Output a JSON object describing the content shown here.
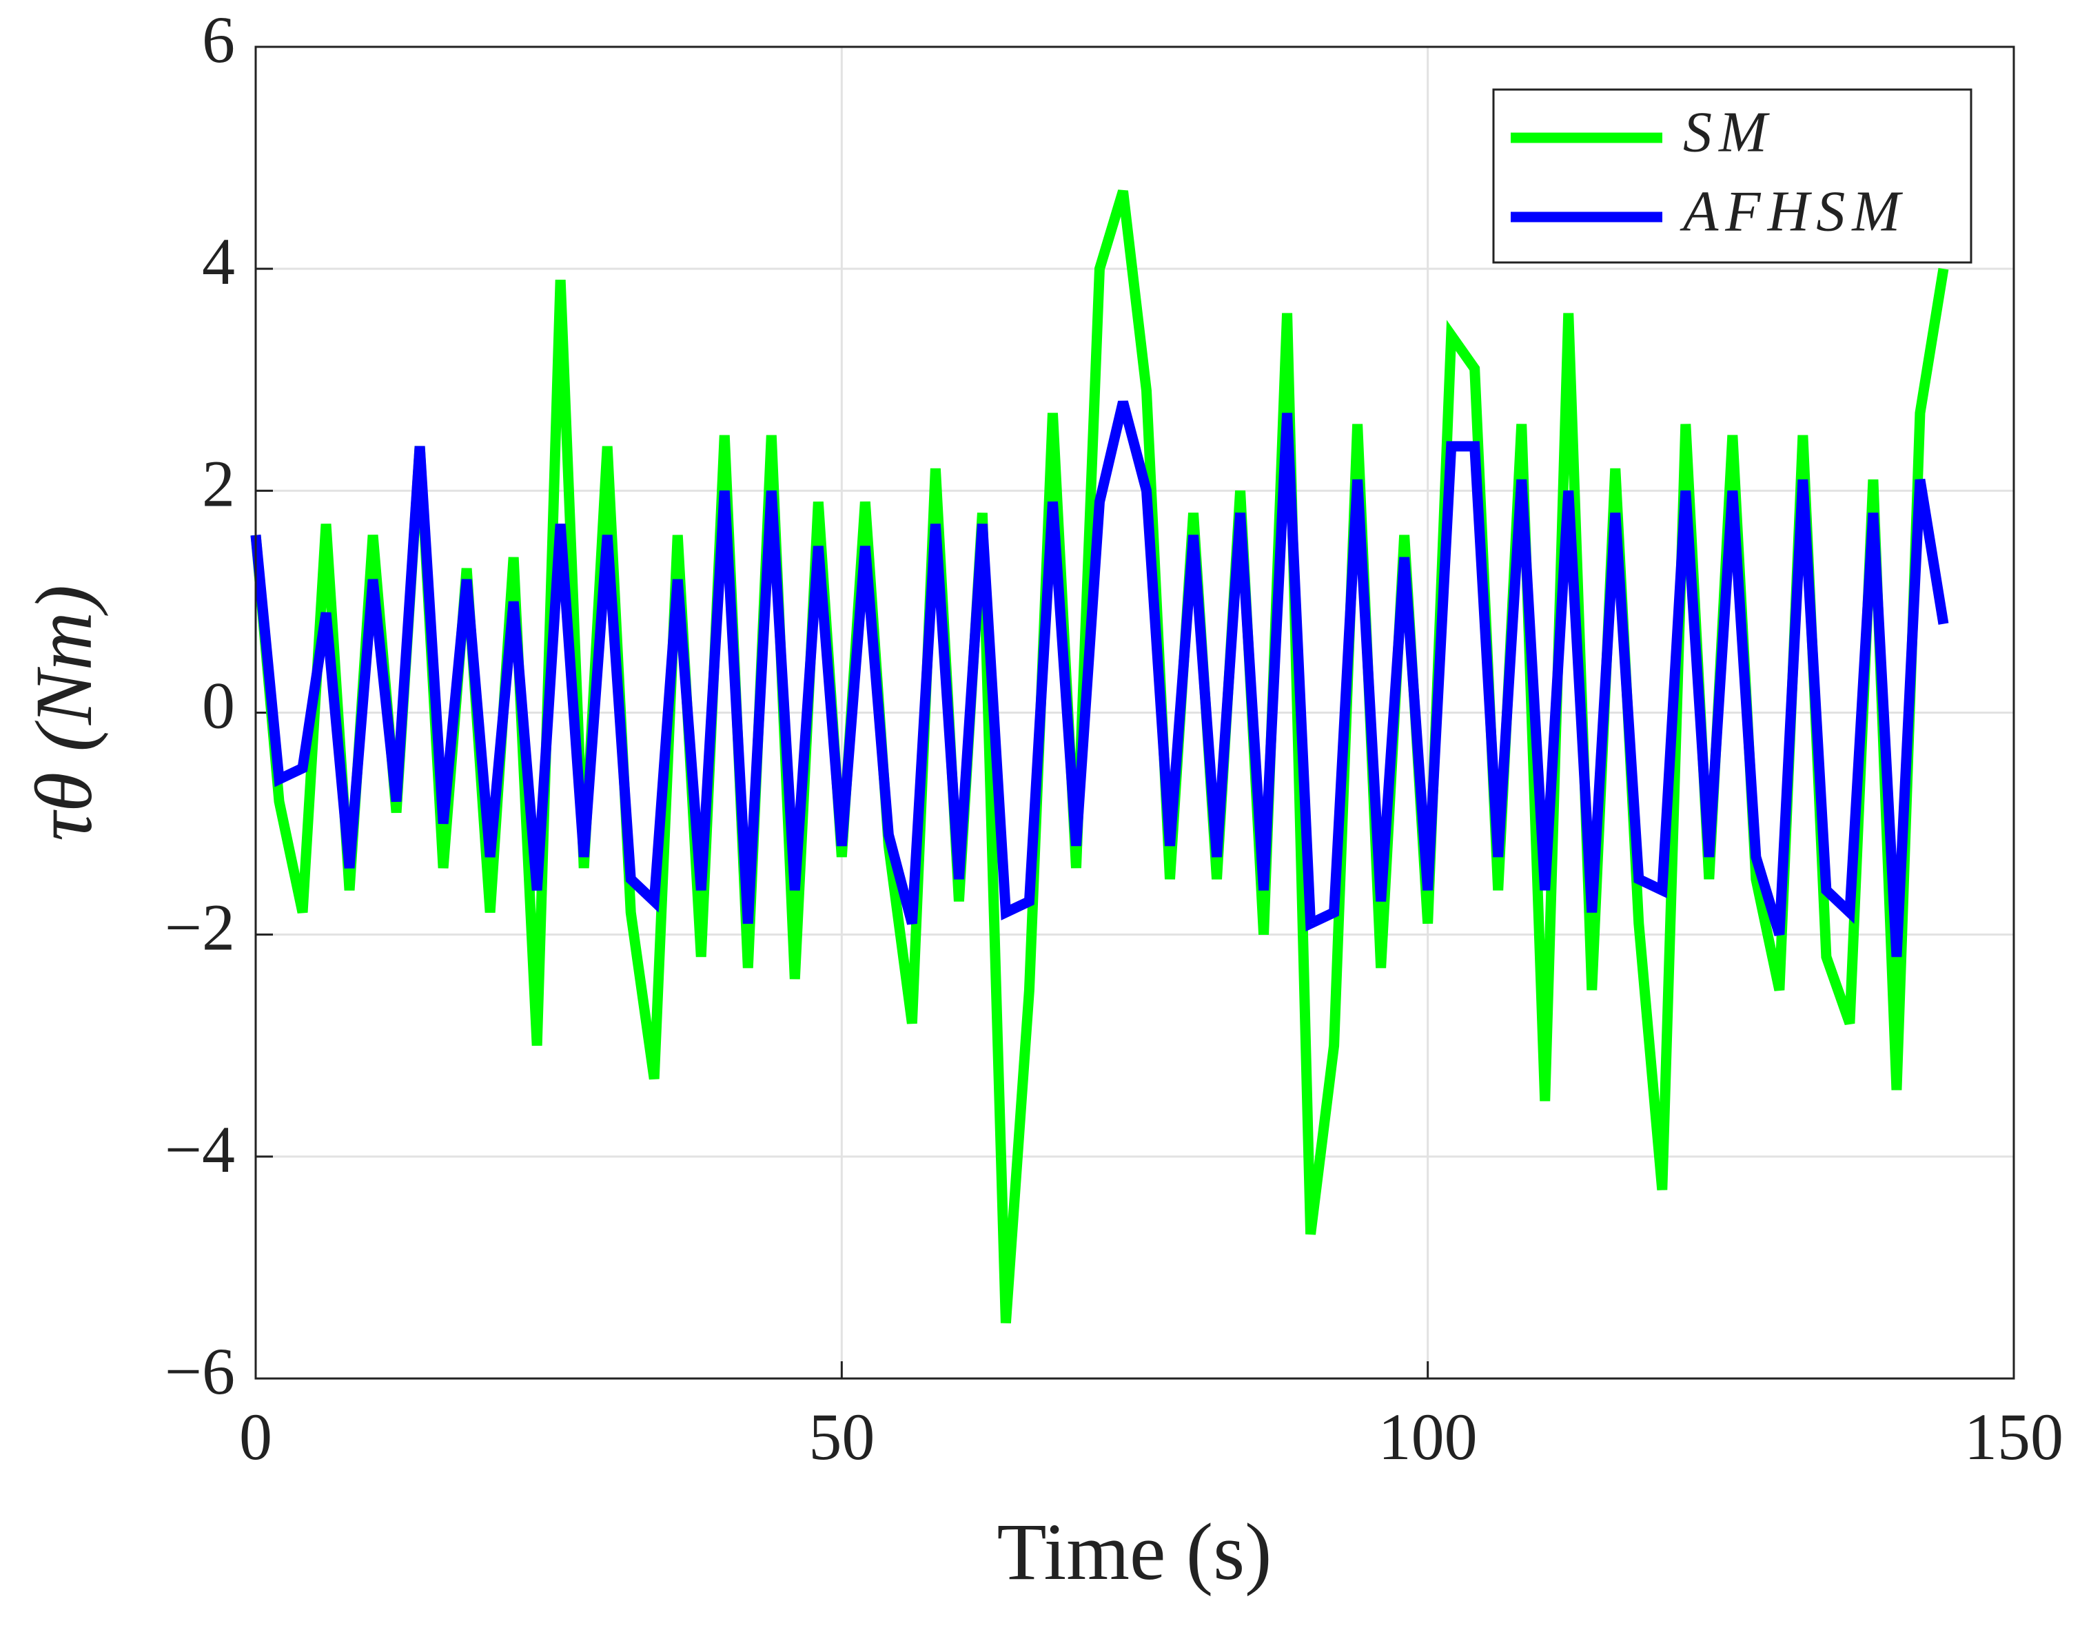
{
  "chart_data": {
    "type": "line",
    "xlabel": "Time (s)",
    "ylabel": "τθ (Nm)",
    "x": [
      0,
      2,
      4,
      6,
      8,
      10,
      12,
      14,
      16,
      18,
      20,
      22,
      24,
      26,
      28,
      30,
      32,
      34,
      36,
      38,
      40,
      42,
      44,
      46,
      48,
      50,
      52,
      54,
      56,
      58,
      60,
      62,
      64,
      66,
      68,
      70,
      72,
      74,
      76,
      78,
      80,
      82,
      84,
      86,
      88,
      90,
      92,
      94,
      96,
      98,
      100,
      102,
      104,
      106,
      108,
      110,
      112,
      114,
      116,
      118,
      120,
      122,
      124,
      126,
      128,
      130,
      132,
      134,
      136,
      138,
      140,
      142,
      144
    ],
    "series": [
      {
        "name": "SM",
        "color": "#00ff00",
        "values": [
          1.6,
          -0.8,
          -1.8,
          1.7,
          -1.6,
          1.6,
          -0.9,
          2.4,
          -1.4,
          1.3,
          -1.8,
          1.4,
          -3.0,
          3.9,
          -1.4,
          2.4,
          -1.8,
          -3.3,
          1.6,
          -2.2,
          2.5,
          -2.3,
          2.5,
          -2.4,
          1.9,
          -1.3,
          1.9,
          -1.2,
          -2.8,
          2.2,
          -1.7,
          1.8,
          -5.5,
          -2.5,
          2.7,
          -1.4,
          4.0,
          4.7,
          2.9,
          -1.5,
          1.8,
          -1.5,
          2.0,
          -2.0,
          3.6,
          -4.7,
          -3.0,
          2.6,
          -2.3,
          1.6,
          -1.9,
          3.4,
          3.1,
          -1.6,
          2.6,
          -3.5,
          3.6,
          -2.5,
          2.2,
          -1.9,
          -4.3,
          2.6,
          -1.5,
          2.5,
          -1.5,
          -2.5,
          2.5,
          -2.2,
          -2.8,
          2.1,
          -3.4,
          2.7,
          4.0
        ]
      },
      {
        "name": "AFHSM",
        "color": "#0000ff",
        "values": [
          1.6,
          -0.6,
          -0.5,
          0.9,
          -1.4,
          1.2,
          -0.8,
          2.4,
          -1.0,
          1.2,
          -1.3,
          1.0,
          -1.6,
          1.7,
          -1.3,
          1.6,
          -1.5,
          -1.7,
          1.2,
          -1.6,
          2.0,
          -1.9,
          2.0,
          -1.6,
          1.5,
          -1.2,
          1.5,
          -1.1,
          -1.9,
          1.7,
          -1.5,
          1.7,
          -1.8,
          -1.7,
          1.9,
          -1.2,
          1.9,
          2.8,
          2.0,
          -1.2,
          1.6,
          -1.3,
          1.8,
          -1.6,
          2.7,
          -1.9,
          -1.8,
          2.1,
          -1.7,
          1.4,
          -1.6,
          2.4,
          2.4,
          -1.3,
          2.1,
          -1.6,
          2.0,
          -1.8,
          1.8,
          -1.5,
          -1.6,
          2.0,
          -1.3,
          2.0,
          -1.3,
          -2.0,
          2.1,
          -1.6,
          -1.8,
          1.8,
          -2.2,
          2.1,
          0.8
        ]
      }
    ],
    "xlim": [
      0,
      150
    ],
    "xticks": [
      0,
      50,
      100,
      150
    ],
    "ylim": [
      -6,
      6
    ],
    "yticks": [
      {
        "value": -6,
        "label": "−6"
      },
      {
        "value": -4,
        "label": "−4"
      },
      {
        "value": -2,
        "label": "−2"
      },
      0,
      2,
      4,
      6
    ],
    "grid": true,
    "legend": "upper right"
  }
}
